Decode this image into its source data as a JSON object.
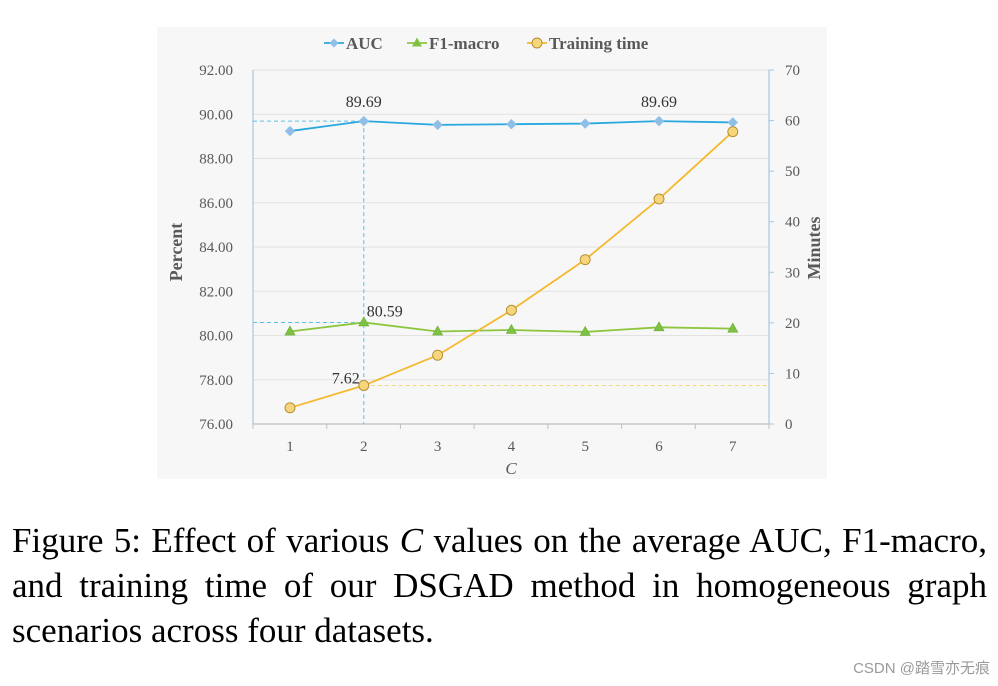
{
  "chart_data": {
    "type": "line",
    "categories": [
      "1",
      "2",
      "3",
      "4",
      "5",
      "6",
      "7"
    ],
    "xlabel": "C",
    "ylabel": "Percent",
    "y2label": "Minutes",
    "ylim": [
      76,
      92
    ],
    "y2lim": [
      0,
      70
    ],
    "yticks": [
      "76.00",
      "78.00",
      "80.00",
      "82.00",
      "84.00",
      "86.00",
      "88.00",
      "90.00",
      "92.00"
    ],
    "y2ticks": [
      "0",
      "10",
      "20",
      "30",
      "40",
      "50",
      "60",
      "70"
    ],
    "series": [
      {
        "name": "AUC",
        "axis": "left",
        "color": "#29A8E0",
        "marker": "diamond",
        "values": [
          89.24,
          89.69,
          89.52,
          89.55,
          89.58,
          89.69,
          89.63
        ]
      },
      {
        "name": "F1-macro",
        "axis": "left",
        "color": "#8CC63F",
        "marker": "triangle",
        "values": [
          80.18,
          80.59,
          80.18,
          80.25,
          80.16,
          80.37,
          80.31
        ]
      },
      {
        "name": "Training time",
        "axis": "right",
        "color": "#F5B82E",
        "marker": "circle",
        "values": [
          3.2,
          7.62,
          13.6,
          22.5,
          32.5,
          44.5,
          57.8
        ]
      }
    ],
    "annotations": [
      {
        "text": "89.69",
        "series": 0,
        "index": 1
      },
      {
        "text": "89.69",
        "series": 0,
        "index": 5
      },
      {
        "text": "80.59",
        "series": 1,
        "index": 1
      },
      {
        "text": "7.62",
        "series": 2,
        "index": 1
      }
    ],
    "grid": true,
    "legend": "top-center"
  },
  "caption": {
    "prefix": "Figure 5: Effect of various ",
    "variable": "C",
    "suffix": " values on the average AUC, F1-macro, and training time of our DSGAD method in homogeneous graph scenarios across four datasets."
  },
  "watermark": "CSDN @踏雪亦无痕"
}
